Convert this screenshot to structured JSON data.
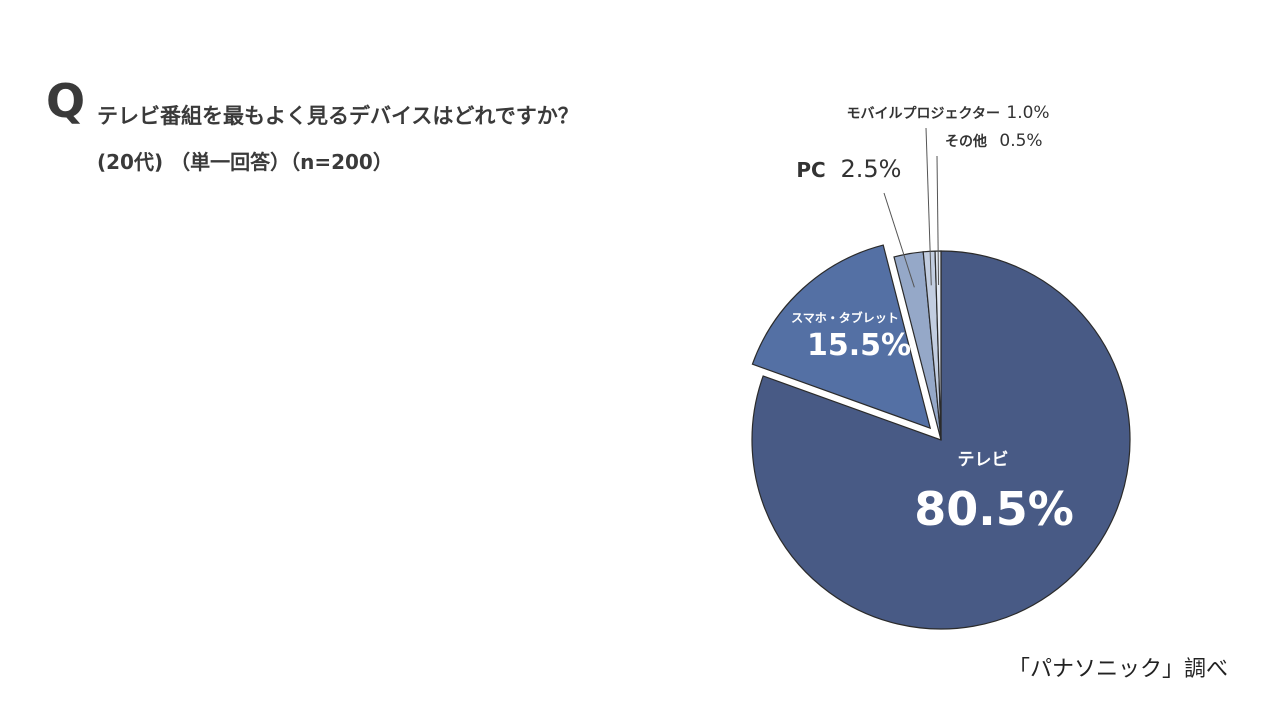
{
  "header": {
    "q_mark": "Q",
    "question": "テレビ番組を最もよく見るデバイスはどれですか？",
    "subtitle": "(20代) （単一回答）（n=200）"
  },
  "footer": {
    "source": "「パナソニック」調べ"
  },
  "chart_data": {
    "type": "pie",
    "categories": [
      "テレビ",
      "スマホ・タブレット",
      "PC",
      "モバイルプロジェクター",
      "その他"
    ],
    "values": [
      80.5,
      15.5,
      2.5,
      1.0,
      0.5
    ],
    "value_labels": [
      "80.5%",
      "15.5%",
      "2.5%",
      "1.0%",
      "0.5%"
    ],
    "exploded": [
      false,
      true,
      false,
      false,
      false
    ],
    "colors": [
      "#485a85",
      "#5470a4",
      "#95a8c8",
      "#c2cde0",
      "#e2e8f2"
    ],
    "legend": "none"
  }
}
